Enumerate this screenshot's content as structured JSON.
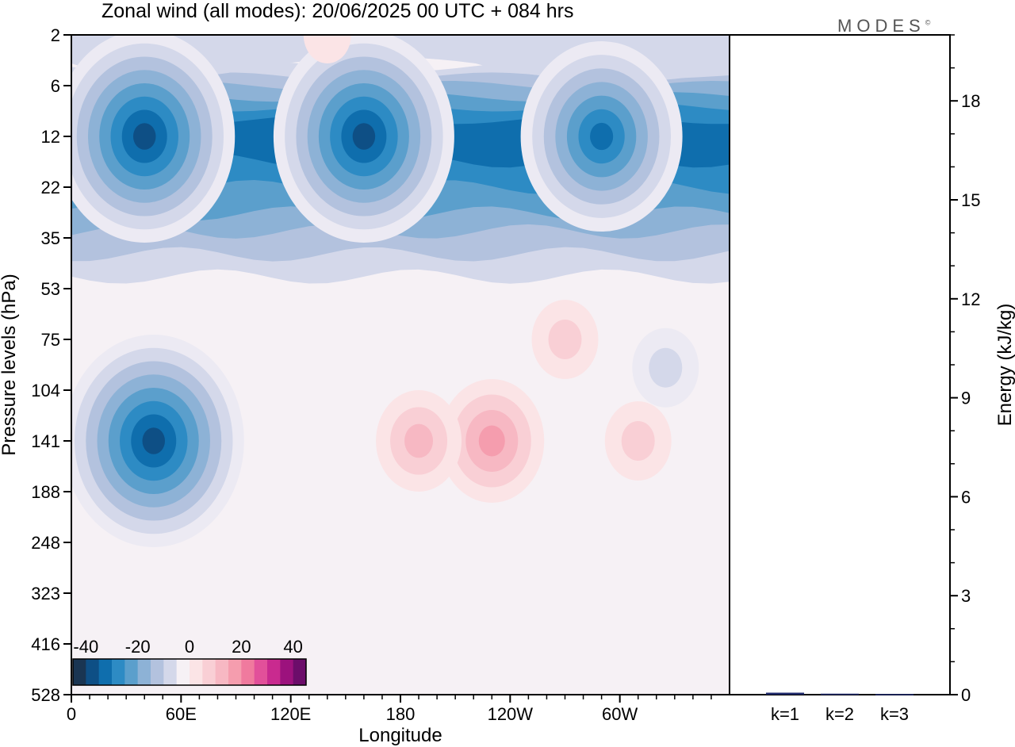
{
  "title": "Zonal wind (all modes):  20/06/2025  00 UTC  + 084 hrs",
  "logo": "MODES",
  "logo_mark": "©",
  "colors": {
    "neg": [
      "#1a3552",
      "#0e4f85",
      "#0f6ead",
      "#2d8bc4",
      "#5b9fcc",
      "#8db2d6",
      "#b3c2de",
      "#d4d8ea",
      "#eceaf3"
    ],
    "neutral": "#f6f1f5",
    "pos": [
      "#fbe4e6",
      "#f9cfd5",
      "#f7b8c3",
      "#f59dae",
      "#f07a9e",
      "#e2509a",
      "#c92a8f",
      "#9c127d",
      "#6c0d6a",
      "#421050"
    ]
  },
  "chart_data": [
    {
      "type": "heatmap",
      "title": "Zonal wind (all modes):  20/06/2025  00 UTC  + 084 hrs",
      "xlabel": "Longitude",
      "ylabel": "Pressure levels (hPa)",
      "x_ticks": [
        "0",
        "60E",
        "120E",
        "180",
        "120W",
        "60W"
      ],
      "x_tick_degrees": [
        0,
        60,
        120,
        180,
        240,
        300
      ],
      "xlim": [
        0,
        360
      ],
      "y_ticks": [
        "2",
        "6",
        "12",
        "22",
        "35",
        "53",
        "75",
        "104",
        "141",
        "188",
        "248",
        "323",
        "416",
        "528"
      ],
      "colorbar": {
        "ticks": [
          "-40",
          "-20",
          "0",
          "20",
          "40"
        ],
        "tick_values": [
          -40,
          -20,
          0,
          20,
          40
        ],
        "range": [
          -45,
          45
        ],
        "step": 5
      },
      "features": [
        {
          "lon": 45,
          "level": 141,
          "value": -42
        },
        {
          "lon": 40,
          "level": 12,
          "value": -40
        },
        {
          "lon": 160,
          "level": 12,
          "value": -40
        },
        {
          "lon": 290,
          "level": 12,
          "value": -38
        },
        {
          "lon": 230,
          "level": 141,
          "value": 22
        },
        {
          "lon": 190,
          "level": 141,
          "value": 16
        },
        {
          "lon": 310,
          "level": 141,
          "value": 14
        },
        {
          "lon": 270,
          "level": 75,
          "value": 13
        },
        {
          "lon": 325,
          "level": 90,
          "value": -12
        },
        {
          "lon": 140,
          "level": 2,
          "value": 6
        }
      ]
    },
    {
      "type": "bar",
      "ylabel": "Energy (kJ/kg)",
      "categories": [
        "k=1",
        "k=2",
        "k=3"
      ],
      "values": [
        0.06,
        0.03,
        0.02
      ],
      "ylim": [
        0,
        20
      ],
      "y_ticks": [
        "0",
        "3",
        "6",
        "9",
        "12",
        "15",
        "18"
      ]
    }
  ]
}
